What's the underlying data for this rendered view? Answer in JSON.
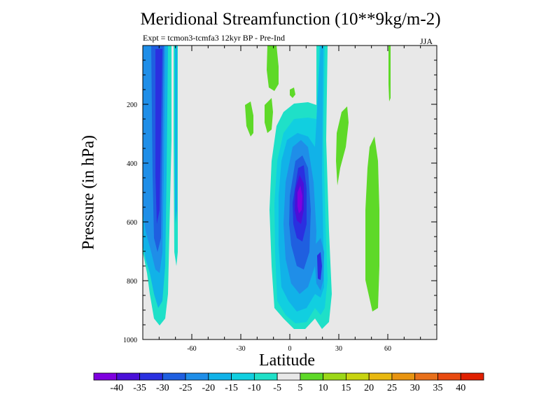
{
  "chart_data": {
    "type": "heatmap",
    "title": "Meridional Streamfunction (10**9kg/m-2)",
    "subtitle": "Expt = tcmon3-tcmfa3     12kyr BP - Pre-Ind",
    "season": "JJA",
    "xlabel": "Latitude",
    "ylabel": "Pressure (in hPa)",
    "xlim": [
      -90,
      90
    ],
    "ylim": [
      1000,
      0
    ],
    "xticks": [
      -60,
      -30,
      0,
      30,
      60
    ],
    "yticks": [
      200,
      400,
      600,
      800,
      1000
    ],
    "colorbar": {
      "labels": [
        "-40",
        "-35",
        "-30",
        "-25",
        "-20",
        "-15",
        "-10",
        "-5",
        "5",
        "10",
        "15",
        "20",
        "25",
        "30",
        "35",
        "40"
      ],
      "colors": [
        "#7f00df",
        "#4a10d8",
        "#2a30e0",
        "#1f5fe0",
        "#1f8ee8",
        "#11b2e8",
        "#11cfe0",
        "#1fe0c8",
        "#e8e8e8",
        "#5ed928",
        "#9cd818",
        "#c8d410",
        "#e8b810",
        "#e89410",
        "#e8701b",
        "#e84a10",
        "#e02000"
      ]
    },
    "features": [
      {
        "name": "SH deep negative cell",
        "lat_range": [
          -90,
          -70
        ],
        "p_range": [
          0,
          950
        ],
        "min_value": -30
      },
      {
        "name": "Equatorial negative cell",
        "lat_range": [
          -12,
          22
        ],
        "p_range": [
          200,
          970
        ],
        "min_value": -40
      },
      {
        "name": "NH positive band",
        "lat_range": [
          48,
          55
        ],
        "p_range": [
          290,
          900
        ],
        "max_value": 10
      }
    ]
  }
}
